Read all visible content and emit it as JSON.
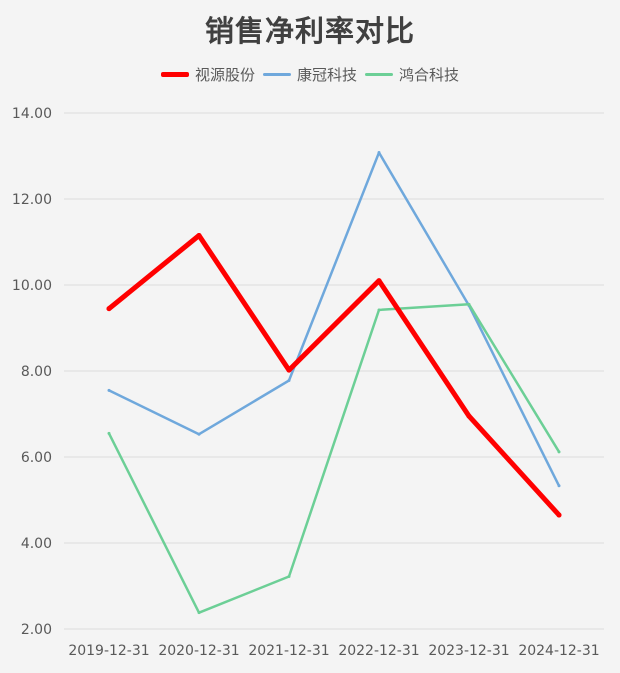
{
  "chart_data": {
    "type": "line",
    "title": "销售净利率对比",
    "categories": [
      "2019-12-31",
      "2020-12-31",
      "2021-12-31",
      "2022-12-31",
      "2023-12-31",
      "2024-12-31"
    ],
    "series": [
      {
        "name": "视源股份",
        "color": "#ff0000",
        "values": [
          9.45,
          11.15,
          8.02,
          10.1,
          6.95,
          4.65
        ]
      },
      {
        "name": "康冠科技",
        "color": "#6fa8dc",
        "values": [
          7.55,
          6.53,
          7.78,
          13.08,
          9.52,
          5.33
        ]
      },
      {
        "name": "鸿合科技",
        "color": "#6ccf96",
        "values": [
          6.55,
          2.38,
          3.22,
          9.42,
          9.55,
          6.12
        ]
      }
    ],
    "yticks": [
      "2.00",
      "4.00",
      "6.00",
      "8.00",
      "10.00",
      "12.00",
      "14.00"
    ],
    "ylim": [
      2,
      14
    ],
    "grid": true,
    "legend_position": "top-center"
  }
}
